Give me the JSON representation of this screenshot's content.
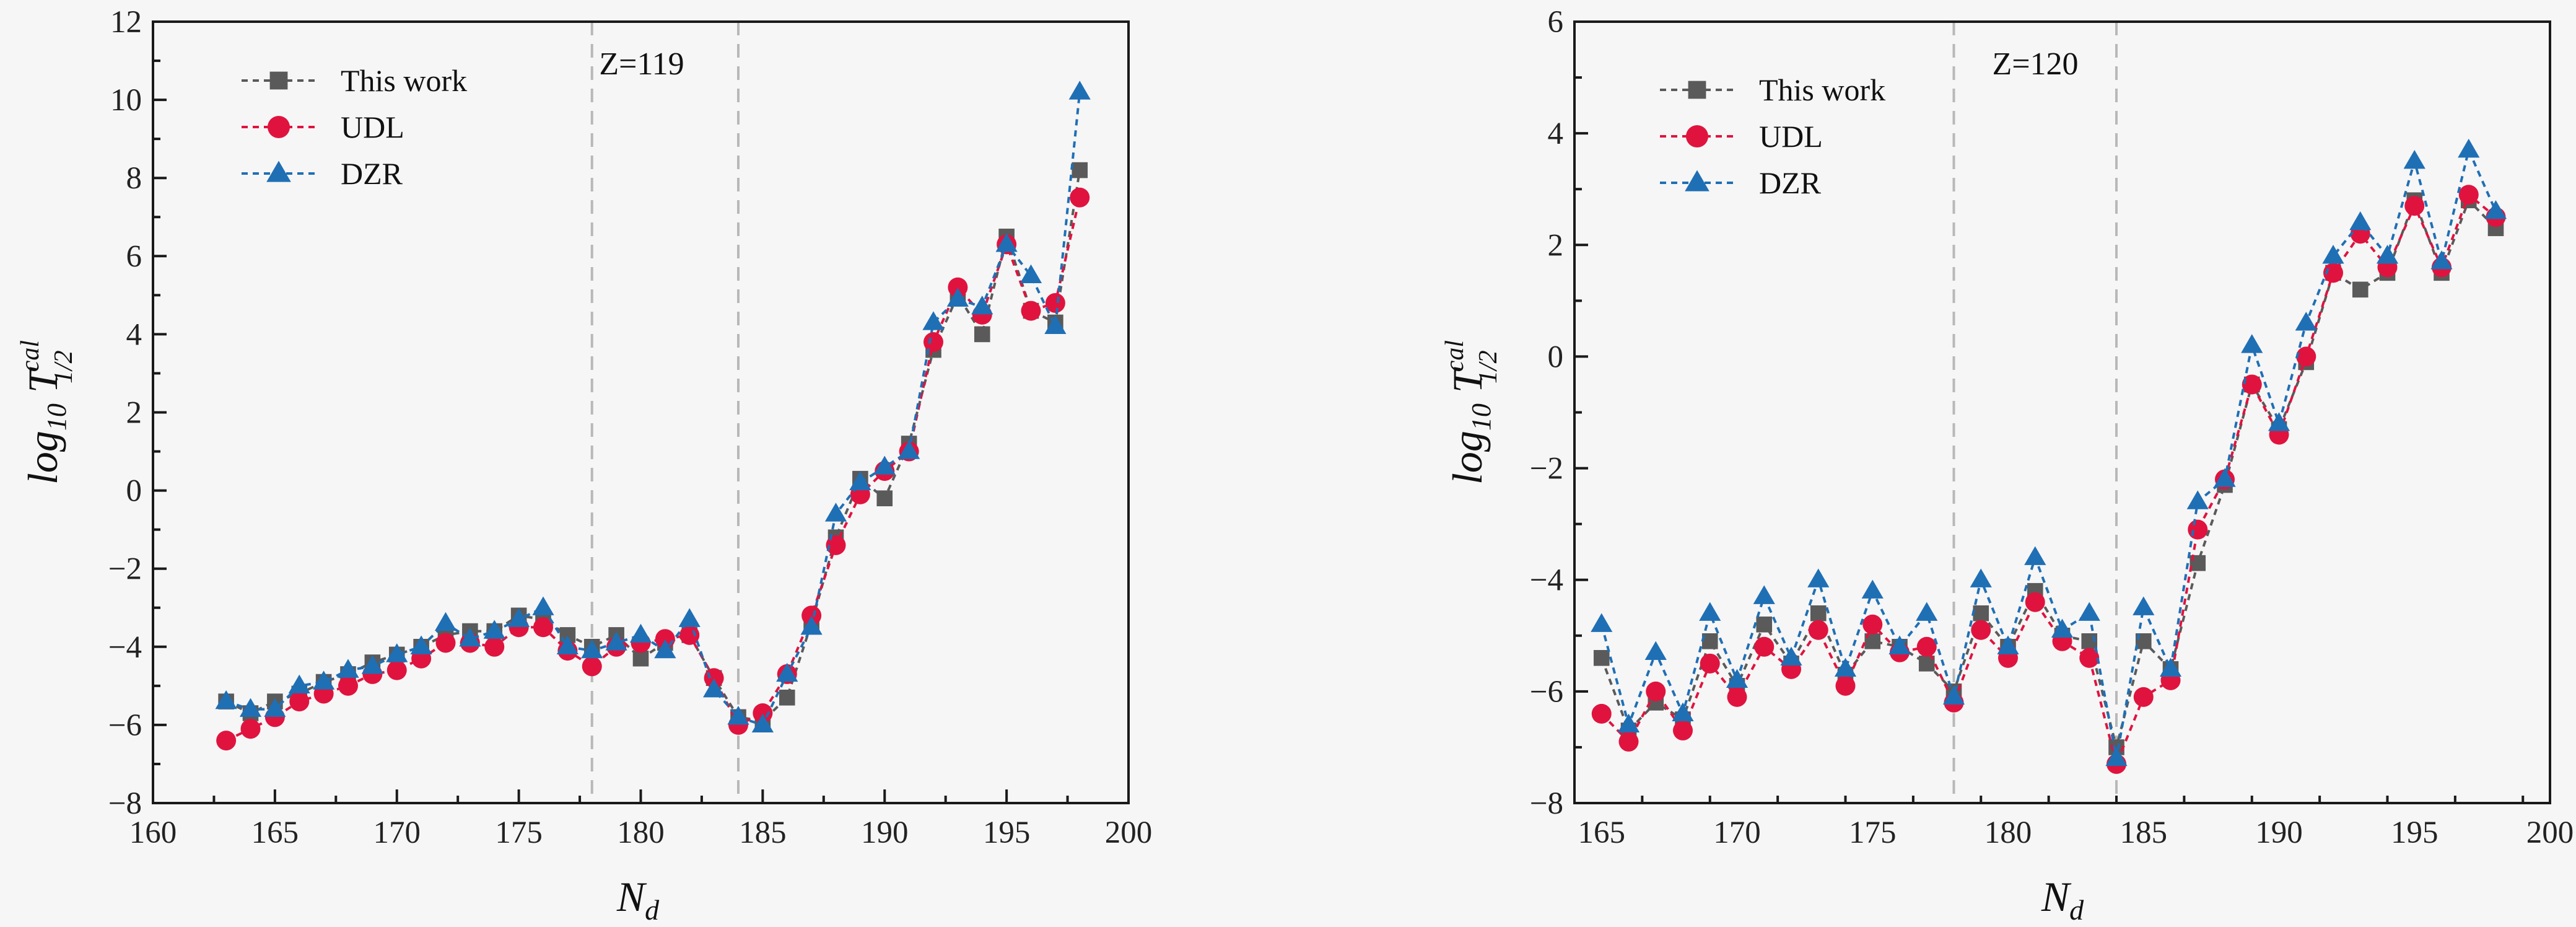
{
  "colors": {
    "this_work": "#5a5a5a",
    "udl": "#e0133f",
    "dzr": "#1f6fb5",
    "axis": "#1a1a1a",
    "guide": "#b8b8b8"
  },
  "chart_data": [
    {
      "type": "line",
      "annotation": "Z=119",
      "xlabel": "N",
      "xlabel_sub": "d",
      "ylabel_text": "log",
      "ylabel_sub1": "10",
      "ylabel_T": "T",
      "ylabel_sup": "cal",
      "ylabel_sub2": "1/2",
      "xlim": [
        160,
        200
      ],
      "ylim": [
        -8,
        12
      ],
      "xticks": [
        160,
        165,
        170,
        175,
        180,
        185,
        190,
        195,
        200
      ],
      "yticks": [
        -8,
        -6,
        -4,
        -2,
        0,
        2,
        4,
        6,
        8,
        10,
        12
      ],
      "guides": [
        178,
        184
      ],
      "legend_position": "top-left",
      "x": [
        163,
        164,
        165,
        166,
        167,
        168,
        169,
        170,
        171,
        172,
        173,
        174,
        175,
        176,
        177,
        178,
        179,
        180,
        181,
        182,
        183,
        184,
        185,
        186,
        187,
        188,
        189,
        190,
        191,
        192,
        193,
        194,
        195,
        196,
        197,
        198
      ],
      "series": [
        {
          "name": "This work",
          "marker": "square",
          "color": "#5a5a5a",
          "values": [
            -5.4,
            -5.7,
            -5.4,
            -5.2,
            -4.9,
            -4.7,
            -4.4,
            -4.2,
            -4.0,
            -3.7,
            -3.6,
            -3.6,
            -3.2,
            -3.3,
            -3.7,
            -4.0,
            -3.7,
            -4.3,
            -3.9,
            -3.7,
            -4.8,
            -5.8,
            -5.9,
            -5.3,
            -3.4,
            -1.2,
            0.3,
            -0.2,
            1.2,
            3.6,
            5.0,
            4.0,
            6.5,
            4.6,
            4.3,
            8.2
          ]
        },
        {
          "name": "UDL",
          "marker": "circle",
          "color": "#e0133f",
          "values": [
            -6.4,
            -6.1,
            -5.8,
            -5.4,
            -5.2,
            -5.0,
            -4.7,
            -4.6,
            -4.3,
            -3.9,
            -3.9,
            -4.0,
            -3.5,
            -3.5,
            -4.1,
            -4.5,
            -4.0,
            -3.9,
            -3.8,
            -3.7,
            -4.8,
            -6.0,
            -5.7,
            -4.7,
            -3.2,
            -1.4,
            -0.1,
            0.5,
            1.0,
            3.8,
            5.2,
            4.5,
            6.3,
            4.6,
            4.8,
            7.5
          ]
        },
        {
          "name": "DZR",
          "marker": "triangle",
          "color": "#1f6fb5",
          "values": [
            -5.4,
            -5.6,
            -5.6,
            -5.0,
            -4.9,
            -4.6,
            -4.5,
            -4.2,
            -4.0,
            -3.4,
            -3.8,
            -3.6,
            -3.3,
            -3.0,
            -4.0,
            -4.1,
            -3.9,
            -3.7,
            -4.1,
            -3.3,
            -5.1,
            -5.8,
            -6.0,
            -4.7,
            -3.5,
            -0.6,
            0.2,
            0.6,
            1.0,
            4.3,
            4.9,
            4.7,
            6.3,
            5.5,
            4.2,
            10.2
          ]
        }
      ]
    },
    {
      "type": "line",
      "annotation": "Z=120",
      "xlabel": "N",
      "xlabel_sub": "d",
      "ylabel_text": "log",
      "ylabel_sub1": "10",
      "ylabel_T": "T",
      "ylabel_sup": "cal",
      "ylabel_sub2": "1/2",
      "xlim": [
        164,
        200
      ],
      "ylim": [
        -8,
        6
      ],
      "xticks": [
        165,
        170,
        175,
        180,
        185,
        190,
        195,
        200
      ],
      "yticks": [
        -8,
        -6,
        -4,
        -2,
        0,
        2,
        4,
        6
      ],
      "guides": [
        178,
        184
      ],
      "legend_position": "top-left",
      "x": [
        165,
        166,
        167,
        168,
        169,
        170,
        171,
        172,
        173,
        174,
        175,
        176,
        177,
        178,
        179,
        180,
        181,
        182,
        183,
        184,
        185,
        186,
        187,
        188,
        189,
        190,
        191,
        192,
        193,
        194,
        195,
        196,
        197,
        198
      ],
      "series": [
        {
          "name": "This work",
          "marker": "square",
          "color": "#5a5a5a",
          "values": [
            -5.4,
            -6.7,
            -6.2,
            -6.5,
            -5.1,
            -5.9,
            -4.8,
            -5.5,
            -4.6,
            -5.7,
            -5.1,
            -5.2,
            -5.5,
            -6.0,
            -4.6,
            -5.2,
            -4.2,
            -5.0,
            -5.1,
            -7.0,
            -5.1,
            -5.6,
            -3.7,
            -2.3,
            -0.5,
            -1.3,
            -0.1,
            1.5,
            1.2,
            1.5,
            2.8,
            1.5,
            2.8,
            2.3
          ]
        },
        {
          "name": "UDL",
          "marker": "circle",
          "color": "#e0133f",
          "values": [
            -6.4,
            -6.9,
            -6.0,
            -6.7,
            -5.5,
            -6.1,
            -5.2,
            -5.6,
            -4.9,
            -5.9,
            -4.8,
            -5.3,
            -5.2,
            -6.2,
            -4.9,
            -5.4,
            -4.4,
            -5.1,
            -5.4,
            -7.3,
            -6.1,
            -5.8,
            -3.1,
            -2.2,
            -0.5,
            -1.4,
            0.0,
            1.5,
            2.2,
            1.6,
            2.7,
            1.6,
            2.9,
            2.5
          ]
        },
        {
          "name": "DZR",
          "marker": "triangle",
          "color": "#1f6fb5",
          "values": [
            -4.8,
            -6.6,
            -5.3,
            -6.4,
            -4.6,
            -5.8,
            -4.3,
            -5.4,
            -4.0,
            -5.6,
            -4.2,
            -5.2,
            -4.6,
            -6.1,
            -4.0,
            -5.2,
            -3.6,
            -4.9,
            -4.6,
            -7.2,
            -4.5,
            -5.6,
            -2.6,
            -2.2,
            0.2,
            -1.2,
            0.6,
            1.8,
            2.4,
            1.8,
            3.5,
            1.7,
            3.7,
            2.6
          ]
        }
      ]
    }
  ]
}
